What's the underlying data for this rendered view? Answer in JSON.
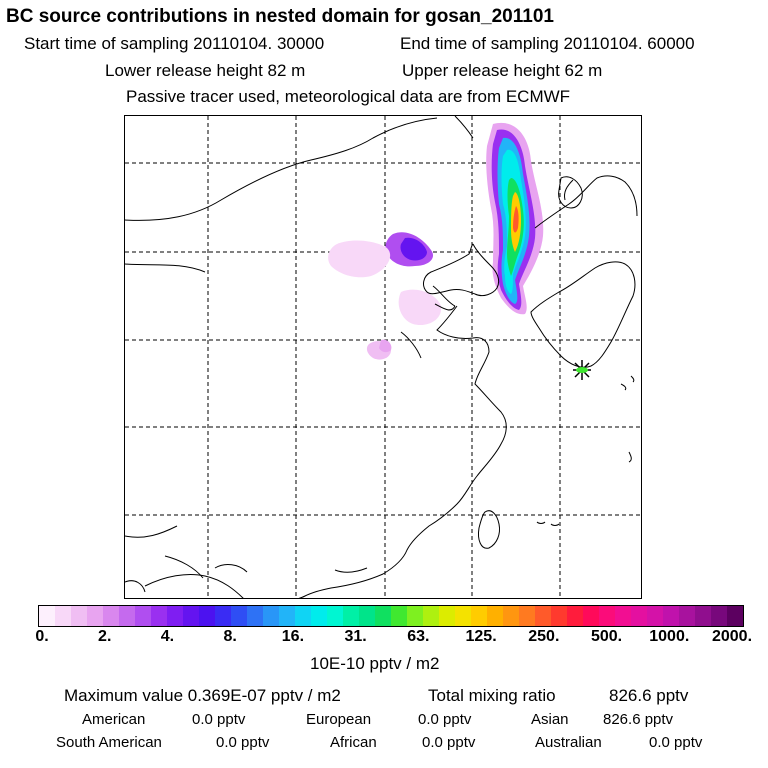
{
  "header": {
    "title": "BC  source contributions in nested domain for gosan_201101",
    "start": "Start time of sampling 20110104. 30000",
    "end": "End time of sampling 20110104. 60000",
    "lower": "Lower release height   82 m",
    "upper": "Upper release height   62 m",
    "passive": "Passive tracer used, meteorological data are from ECMWF"
  },
  "colorbar": {
    "colors": [
      "#fdf0fd",
      "#f8d8f8",
      "#f0bef3",
      "#e8a4f0",
      "#d987ee",
      "#c56aee",
      "#b04ef0",
      "#9a30f0",
      "#7f1ef2",
      "#6414f0",
      "#4c12f0",
      "#3a2cf4",
      "#2f4ef4",
      "#2e72f5",
      "#2996f7",
      "#22b4f8",
      "#10d4f4",
      "#00ecec",
      "#00f6d2",
      "#00f0a6",
      "#00e48a",
      "#10e060",
      "#40e830",
      "#7ef020",
      "#aef010",
      "#dcec00",
      "#f4e200",
      "#ffcc00",
      "#ffb000",
      "#ff9610",
      "#ff7a20",
      "#ff5a2a",
      "#ff3a2e",
      "#ff1c3c",
      "#ff0a5a",
      "#fb0c7a",
      "#f20e92",
      "#e410a0",
      "#d412a8",
      "#c012ac",
      "#a8129e",
      "#900e8e",
      "#78087c",
      "#5c0060"
    ],
    "ticks": [
      "0.",
      "2.",
      "4.",
      "8.",
      "16.",
      "31.",
      "63.",
      "125.",
      "250.",
      "500.",
      "1000.",
      "2000."
    ],
    "unit": "10E-10 pptv / m2"
  },
  "summary": {
    "max_value": "Maximum value  0.369E-07 pptv / m2",
    "total_mixing": "Total mixing ratio",
    "total_value": "826.6 pptv",
    "regions": [
      {
        "name": "American",
        "value": "0.0 pptv"
      },
      {
        "name": "European",
        "value": "0.0 pptv"
      },
      {
        "name": "Asian",
        "value": "826.6 pptv"
      },
      {
        "name": "South American",
        "value": "0.0 pptv"
      },
      {
        "name": "African",
        "value": "0.0 pptv"
      },
      {
        "name": "Australian",
        "value": "0.0 pptv"
      }
    ]
  }
}
